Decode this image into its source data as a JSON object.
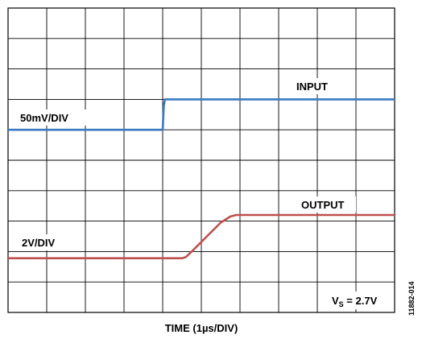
{
  "chart_data": {
    "type": "line",
    "title": "",
    "xlabel": "TIME (1µs/DIV)",
    "ylabel": "",
    "grid": true,
    "grid_divisions": {
      "x": 10,
      "y": 10
    },
    "xlim": [
      0,
      10
    ],
    "ylim": [
      0,
      10
    ],
    "series": [
      {
        "name": "INPUT",
        "scale": "50mV/DIV",
        "color": "#3a78c2",
        "x": [
          0,
          4.0,
          4.03,
          4.06,
          10
        ],
        "y": [
          6.0,
          6.0,
          6.8,
          7.0,
          7.0
        ]
      },
      {
        "name": "OUTPUT",
        "scale": "2V/DIV",
        "color": "#c0504d",
        "x": [
          0,
          4.5,
          4.6,
          4.75,
          5.5,
          5.75,
          5.9,
          10
        ],
        "y": [
          1.78,
          1.78,
          1.82,
          2.0,
          2.95,
          3.15,
          3.2,
          3.2
        ]
      }
    ],
    "annotations": {
      "input_label": "INPUT",
      "output_label": "OUTPUT",
      "input_scale": "50mV/DIV",
      "output_scale": "2V/DIV",
      "vs_prefix": "V",
      "vs_subscript": "S",
      "vs_value": " = 2.7V"
    }
  },
  "figure_id": "11882-014"
}
